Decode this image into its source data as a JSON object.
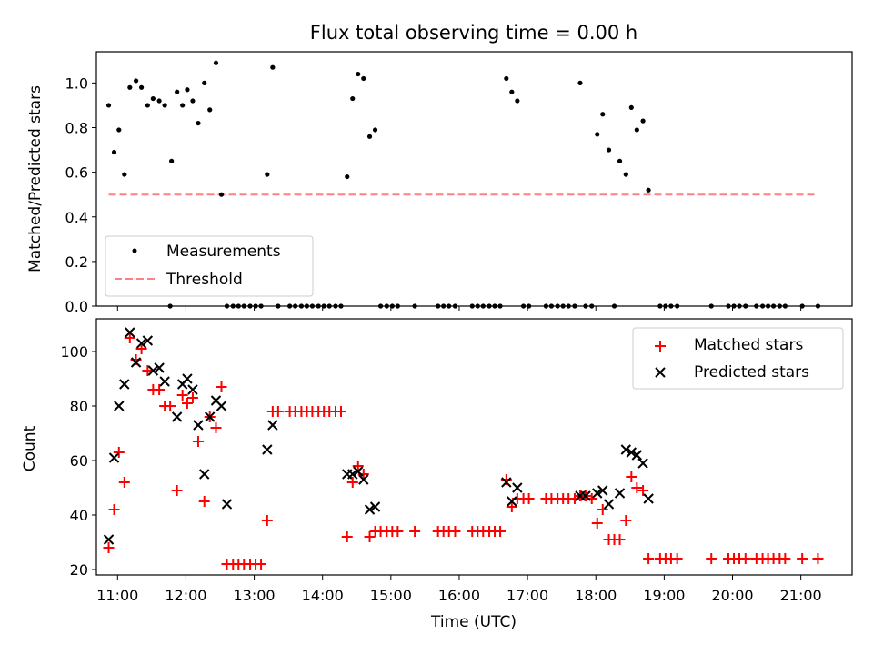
{
  "chart_data": [
    {
      "type": "scatter",
      "title": "Flux total observing time = 0.00 h",
      "xlabel": "",
      "ylabel": "Matched/Predicted stars",
      "xlim": [
        10.69,
        21.75
      ],
      "ylim": [
        0.0,
        1.14
      ],
      "yticks": [
        0.0,
        0.2,
        0.4,
        0.6,
        0.8,
        1.0
      ],
      "legend_position": "lower-left",
      "threshold": {
        "name": "Threshold",
        "value": 0.5,
        "x_range": [
          10.87,
          21.25
        ],
        "color": "#ff8080"
      },
      "series": [
        {
          "name": "Measurements",
          "color": "#000000",
          "x": [
            10.87,
            10.95,
            11.02,
            11.1,
            11.18,
            11.27,
            11.35,
            11.44,
            11.52,
            11.61,
            11.69,
            11.79,
            11.87,
            11.95,
            12.02,
            12.1,
            12.18,
            12.27,
            12.35,
            12.44,
            12.52,
            12.6,
            13.19,
            13.27,
            14.36,
            14.44,
            14.52,
            14.6,
            14.69,
            14.77,
            16.69,
            16.77,
            16.85,
            17.77,
            18.02,
            18.1,
            18.19,
            18.35,
            18.44,
            18.52,
            18.6,
            18.69,
            18.77,
            11.77,
            12.69,
            12.77,
            12.85,
            12.94,
            13.02,
            13.1,
            13.35,
            13.52,
            13.6,
            13.69,
            13.77,
            13.85,
            13.94,
            14.02,
            14.1,
            14.19,
            14.27,
            14.85,
            14.94,
            15.02,
            15.1,
            15.35,
            15.69,
            15.77,
            15.85,
            15.94,
            16.19,
            16.27,
            16.35,
            16.44,
            16.52,
            16.6,
            16.94,
            17.02,
            17.27,
            17.35,
            17.44,
            17.52,
            17.6,
            17.69,
            17.85,
            17.94,
            18.27,
            18.94,
            19.02,
            19.1,
            19.19,
            19.69,
            19.94,
            20.02,
            20.1,
            20.19,
            20.35,
            20.44,
            20.52,
            20.6,
            20.69,
            20.77,
            21.02,
            21.25
          ],
          "y": [
            0.9,
            0.69,
            0.79,
            0.59,
            0.98,
            1.01,
            0.98,
            0.9,
            0.93,
            0.92,
            0.9,
            0.65,
            0.96,
            0.9,
            0.97,
            0.92,
            0.82,
            1.0,
            0.88,
            1.09,
            0.5,
            0.0,
            0.59,
            1.07,
            0.58,
            0.93,
            1.04,
            1.02,
            0.76,
            0.79,
            1.02,
            0.96,
            0.92,
            1.0,
            0.77,
            0.86,
            0.7,
            0.65,
            0.59,
            0.89,
            0.79,
            0.83,
            0.52,
            0.0,
            0.0,
            0.0,
            0.0,
            0.0,
            0.0,
            0.0,
            0.0,
            0.0,
            0.0,
            0.0,
            0.0,
            0.0,
            0.0,
            0.0,
            0.0,
            0.0,
            0.0,
            0.0,
            0.0,
            0.0,
            0.0,
            0.0,
            0.0,
            0.0,
            0.0,
            0.0,
            0.0,
            0.0,
            0.0,
            0.0,
            0.0,
            0.0,
            0.0,
            0.0,
            0.0,
            0.0,
            0.0,
            0.0,
            0.0,
            0.0,
            0.0,
            0.0,
            0.0,
            0.0,
            0.0,
            0.0,
            0.0,
            0.0,
            0.0,
            0.0,
            0.0,
            0.0,
            0.0,
            0.0,
            0.0,
            0.0,
            0.0,
            0.0,
            0.0,
            0.0
          ]
        }
      ]
    },
    {
      "type": "scatter",
      "title": "",
      "xlabel": "Time (UTC)",
      "ylabel": "Count",
      "xlim": [
        10.69,
        21.75
      ],
      "ylim": [
        18,
        112
      ],
      "xticks": [
        11,
        12,
        13,
        14,
        15,
        16,
        17,
        18,
        19,
        20,
        21
      ],
      "xtick_labels": [
        "11:00",
        "12:00",
        "13:00",
        "14:00",
        "15:00",
        "16:00",
        "17:00",
        "18:00",
        "19:00",
        "20:00",
        "21:00"
      ],
      "yticks": [
        20,
        40,
        60,
        80,
        100
      ],
      "legend_position": "upper-right",
      "series": [
        {
          "name": "Matched stars",
          "marker": "+",
          "color": "#ff0000",
          "x": [
            10.87,
            10.95,
            11.02,
            11.1,
            11.18,
            11.27,
            11.35,
            11.44,
            11.52,
            11.61,
            11.69,
            11.77,
            11.87,
            11.95,
            12.02,
            12.1,
            12.18,
            12.27,
            12.35,
            12.44,
            12.52,
            12.6,
            12.69,
            12.77,
            12.85,
            12.94,
            13.02,
            13.1,
            13.19,
            13.27,
            13.35,
            13.52,
            13.6,
            13.69,
            13.77,
            13.85,
            13.94,
            14.02,
            14.1,
            14.19,
            14.27,
            14.36,
            14.44,
            14.52,
            14.6,
            14.69,
            14.77,
            14.85,
            14.94,
            15.02,
            15.1,
            15.35,
            15.69,
            15.77,
            15.85,
            15.94,
            16.19,
            16.27,
            16.35,
            16.44,
            16.52,
            16.6,
            16.69,
            16.77,
            16.85,
            16.94,
            17.02,
            17.27,
            17.35,
            17.44,
            17.52,
            17.6,
            17.69,
            17.77,
            17.85,
            17.94,
            18.02,
            18.1,
            18.19,
            18.27,
            18.35,
            18.44,
            18.52,
            18.6,
            18.69,
            18.77,
            18.94,
            19.02,
            19.1,
            19.19,
            19.69,
            19.94,
            20.02,
            20.1,
            20.19,
            20.35,
            20.44,
            20.52,
            20.6,
            20.69,
            20.77,
            21.02,
            21.25
          ],
          "y": [
            28,
            42,
            63,
            52,
            105,
            97,
            101,
            93,
            86,
            86,
            80,
            80,
            49,
            84,
            81,
            83,
            67,
            45,
            76,
            72,
            87,
            22,
            22,
            22,
            22,
            22,
            22,
            22,
            38,
            78,
            78,
            78,
            78,
            78,
            78,
            78,
            78,
            78,
            78,
            78,
            78,
            32,
            52,
            58,
            55,
            32,
            34,
            34,
            34,
            34,
            34,
            34,
            34,
            34,
            34,
            34,
            34,
            34,
            34,
            34,
            34,
            34,
            53,
            43,
            46,
            46,
            46,
            46,
            46,
            46,
            46,
            46,
            46,
            47,
            47,
            46,
            37,
            42,
            31,
            31,
            31,
            38,
            54,
            50,
            49,
            24,
            24,
            24,
            24,
            24,
            24,
            24,
            24,
            24,
            24,
            24,
            24,
            24,
            24,
            24,
            24,
            24,
            24
          ]
        },
        {
          "name": "Predicted stars",
          "marker": "x",
          "color": "#000000",
          "x": [
            10.87,
            10.95,
            11.02,
            11.1,
            11.18,
            11.27,
            11.35,
            11.44,
            11.52,
            11.61,
            11.69,
            11.87,
            11.95,
            12.02,
            12.1,
            12.18,
            12.27,
            12.35,
            12.44,
            12.52,
            12.6,
            13.19,
            13.27,
            14.36,
            14.44,
            14.52,
            14.6,
            14.69,
            14.77,
            16.69,
            16.77,
            16.85,
            17.77,
            17.85,
            18.02,
            18.1,
            18.19,
            18.35,
            18.44,
            18.52,
            18.6,
            18.69,
            18.77
          ],
          "y": [
            31,
            61,
            80,
            88,
            107,
            96,
            103,
            104,
            93,
            94,
            89,
            76,
            88,
            90,
            86,
            73,
            55,
            76,
            82,
            80,
            44,
            64,
            73,
            55,
            55,
            56,
            53,
            42,
            43,
            52,
            45,
            50,
            47,
            47,
            48,
            49,
            44,
            48,
            64,
            63,
            62,
            59,
            46
          ]
        }
      ]
    }
  ]
}
